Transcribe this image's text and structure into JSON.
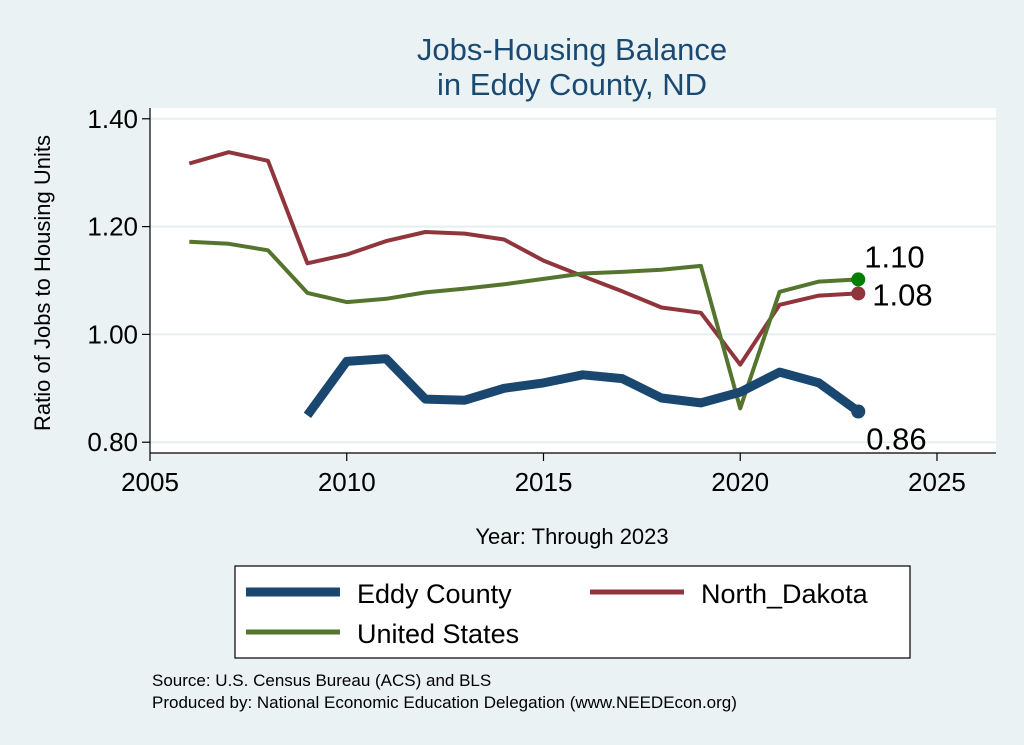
{
  "chart_data": {
    "type": "line",
    "title": [
      "Jobs-Housing Balance",
      "in Eddy County, ND"
    ],
    "xlabel": "Year: Through 2023",
    "ylabel": "Ratio of Jobs to Housing Units",
    "xlim": [
      2005,
      2026.5
    ],
    "ylim": [
      0.78,
      1.42
    ],
    "xticks": [
      2005,
      2010,
      2015,
      2020,
      2025
    ],
    "yticks": [
      0.8,
      1.0,
      1.2,
      1.4
    ],
    "ytick_labels": [
      "0.80",
      "1.00",
      "1.20",
      "1.40"
    ],
    "grid": true,
    "series": [
      {
        "name": "Eddy County",
        "color": "#1a476f",
        "width": 9,
        "x": [
          2009,
          2010,
          2011,
          2012,
          2013,
          2014,
          2015,
          2016,
          2017,
          2018,
          2019,
          2020,
          2021,
          2022,
          2023
        ],
        "values": [
          0.85,
          0.95,
          0.955,
          0.88,
          0.878,
          0.9,
          0.91,
          0.925,
          0.918,
          0.882,
          0.873,
          0.893,
          0.93,
          0.91,
          0.857
        ],
        "end_label": "0.86",
        "end_marker_color": "#1a476f"
      },
      {
        "name": "North_Dakota",
        "color": "#90353b",
        "width": 4,
        "x": [
          2006,
          2007,
          2008,
          2009,
          2010,
          2011,
          2012,
          2013,
          2014,
          2015,
          2016,
          2017,
          2018,
          2019,
          2020,
          2021,
          2022,
          2023
        ],
        "values": [
          1.317,
          1.338,
          1.322,
          1.132,
          1.148,
          1.173,
          1.19,
          1.187,
          1.176,
          1.137,
          1.108,
          1.08,
          1.05,
          1.04,
          0.944,
          1.055,
          1.072,
          1.076
        ],
        "end_label": "1.08",
        "end_marker_color": "#90353b"
      },
      {
        "name": "United States",
        "color": "#55752f",
        "width": 4,
        "x": [
          2006,
          2007,
          2008,
          2009,
          2010,
          2011,
          2012,
          2013,
          2014,
          2015,
          2016,
          2017,
          2018,
          2019,
          2020,
          2021,
          2022,
          2023
        ],
        "values": [
          1.172,
          1.168,
          1.156,
          1.077,
          1.06,
          1.066,
          1.078,
          1.085,
          1.093,
          1.103,
          1.113,
          1.116,
          1.12,
          1.127,
          0.863,
          1.079,
          1.098,
          1.102
        ],
        "end_label": "1.10",
        "end_marker_color": "#008000"
      }
    ],
    "legend": {
      "position": "bottom",
      "entries": [
        "Eddy County",
        "North_Dakota",
        "United States"
      ]
    }
  },
  "source": {
    "line1": "Source: U.S. Census Bureau (ACS) and BLS",
    "line2": "Produced by: National Economic Education Delegation (www.NEEDEcon.org)"
  }
}
